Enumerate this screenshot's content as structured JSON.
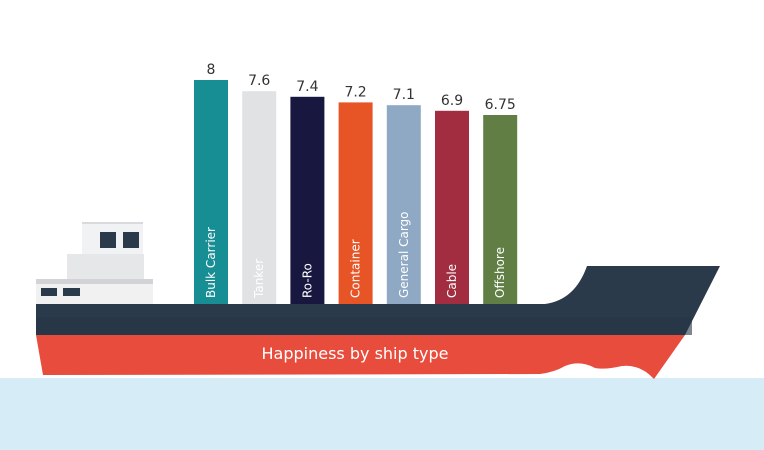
{
  "chart_data": {
    "type": "bar",
    "title": "Happiness by ship type",
    "categories": [
      "Bulk Carrier",
      "Tanker",
      "Ro-Ro",
      "Container",
      "General Cargo",
      "Cable",
      "Offshore"
    ],
    "values": [
      8,
      7.6,
      7.4,
      7.2,
      7.1,
      6.9,
      6.75
    ],
    "value_labels": [
      "8",
      "7.6",
      "7.4",
      "7.2",
      "7.1",
      "6.9",
      "6.75"
    ],
    "colors": [
      "#178d94",
      "#e1e2e4",
      "#17173f",
      "#e75527",
      "#8fa9c4",
      "#a22d40",
      "#617f45"
    ],
    "label_colors": [
      "#ffffff",
      "#555555",
      "#ffffff",
      "#ffffff",
      "#ffffff",
      "#ffffff",
      "#ffffff"
    ],
    "xlabel": "",
    "ylabel": "",
    "grid": false
  },
  "colors": {
    "hull": "#2b3a4b",
    "hull_band": "#e84c3d",
    "water": "#d6edf8"
  }
}
